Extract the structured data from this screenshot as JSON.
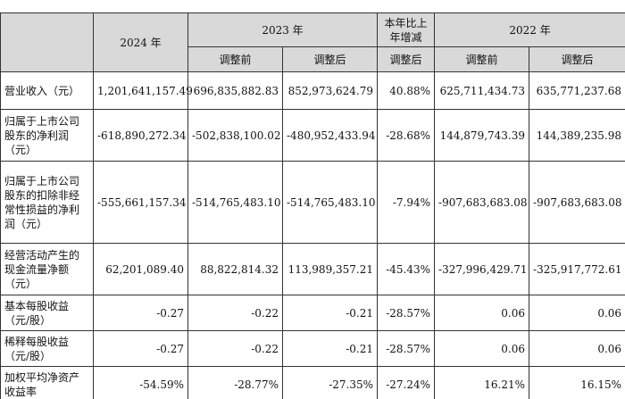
{
  "header": {
    "y2024": "2024 年",
    "y2023": "2023 年",
    "change": "本年比上年增减",
    "y2022": "2022 年",
    "before_adj": "调整前",
    "after_adj": "调整后"
  },
  "rows": [
    {
      "label": "营业收入（元）",
      "v2024": "1,201,641,157.49",
      "v2023_before": "696,835,882.83",
      "v2023_after": "852,973,624.79",
      "change": "40.88%",
      "v2022_before": "625,711,434.73",
      "v2022_after": "635,771,237.68"
    },
    {
      "label": "归属于上市公司股东的净利润（元）",
      "v2024": "-618,890,272.34",
      "v2023_before": "-502,838,100.02",
      "v2023_after": "-480,952,433.94",
      "change": "-28.68%",
      "v2022_before": "144,879,743.39",
      "v2022_after": "144,389,235.98"
    },
    {
      "label": "归属于上市公司股东的扣除非经常性损益的净利润（元）",
      "v2024": "-555,661,157.34",
      "v2023_before": "-514,765,483.10",
      "v2023_after": "-514,765,483.10",
      "change": "-7.94%",
      "v2022_before": "-907,683,683.08",
      "v2022_after": "-907,683,683.08"
    },
    {
      "label": "经营活动产生的现金流量净额（元）",
      "v2024": "62,201,089.40",
      "v2023_before": "88,822,814.32",
      "v2023_after": "113,989,357.21",
      "change": "-45.43%",
      "v2022_before": "-327,996,429.71",
      "v2022_after": "-325,917,772.61"
    },
    {
      "label": "基本每股收益（元/股）",
      "v2024": "-0.27",
      "v2023_before": "-0.22",
      "v2023_after": "-0.21",
      "change": "-28.57%",
      "v2022_before": "0.06",
      "v2022_after": "0.06"
    },
    {
      "label": "稀释每股收益（元/股）",
      "v2024": "-0.27",
      "v2023_before": "-0.22",
      "v2023_after": "-0.21",
      "change": "-28.57%",
      "v2022_before": "0.06",
      "v2022_after": "0.06"
    },
    {
      "label": "加权平均净资产收益率",
      "v2024": "-54.59%",
      "v2023_before": "-28.77%",
      "v2023_after": "-27.35%",
      "change": "-27.24%",
      "v2022_before": "16.21%",
      "v2022_after": "16.15%"
    }
  ]
}
